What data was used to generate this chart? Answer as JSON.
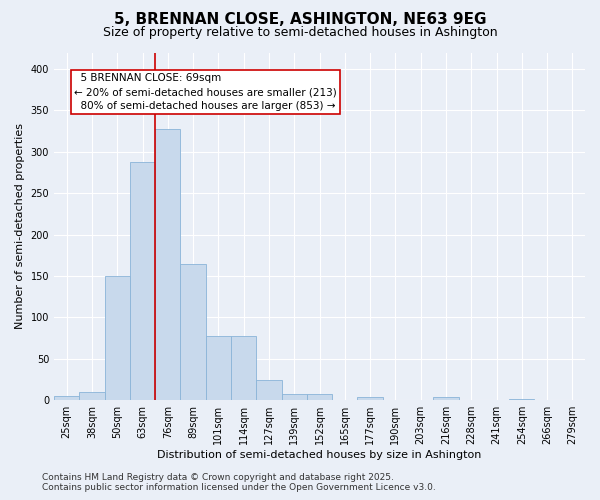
{
  "title": "5, BRENNAN CLOSE, ASHINGTON, NE63 9EG",
  "subtitle": "Size of property relative to semi-detached houses in Ashington",
  "xlabel": "Distribution of semi-detached houses by size in Ashington",
  "ylabel": "Number of semi-detached properties",
  "bar_color": "#c8d9ec",
  "bar_edge_color": "#8ab4d8",
  "categories": [
    "25sqm",
    "38sqm",
    "50sqm",
    "63sqm",
    "76sqm",
    "89sqm",
    "101sqm",
    "114sqm",
    "127sqm",
    "139sqm",
    "152sqm",
    "165sqm",
    "177sqm",
    "190sqm",
    "203sqm",
    "216sqm",
    "228sqm",
    "241sqm",
    "254sqm",
    "266sqm",
    "279sqm"
  ],
  "values": [
    5,
    10,
    150,
    288,
    328,
    165,
    77,
    77,
    25,
    7,
    8,
    0,
    4,
    0,
    0,
    4,
    0,
    0,
    1,
    0,
    0
  ],
  "ylim": [
    0,
    420
  ],
  "yticks": [
    0,
    50,
    100,
    150,
    200,
    250,
    300,
    350,
    400
  ],
  "property_line_x": 3.5,
  "annotation_text": "  5 BRENNAN CLOSE: 69sqm\n← 20% of semi-detached houses are smaller (213)\n  80% of semi-detached houses are larger (853) →",
  "annotation_box_color": "#ffffff",
  "annotation_box_edge": "#cc0000",
  "red_line_color": "#cc0000",
  "background_color": "#eaeff7",
  "grid_color": "#ffffff",
  "footer_text": "Contains HM Land Registry data © Crown copyright and database right 2025.\nContains public sector information licensed under the Open Government Licence v3.0.",
  "title_fontsize": 11,
  "subtitle_fontsize": 9,
  "label_fontsize": 8,
  "tick_fontsize": 7,
  "annotation_fontsize": 7.5,
  "footer_fontsize": 6.5
}
